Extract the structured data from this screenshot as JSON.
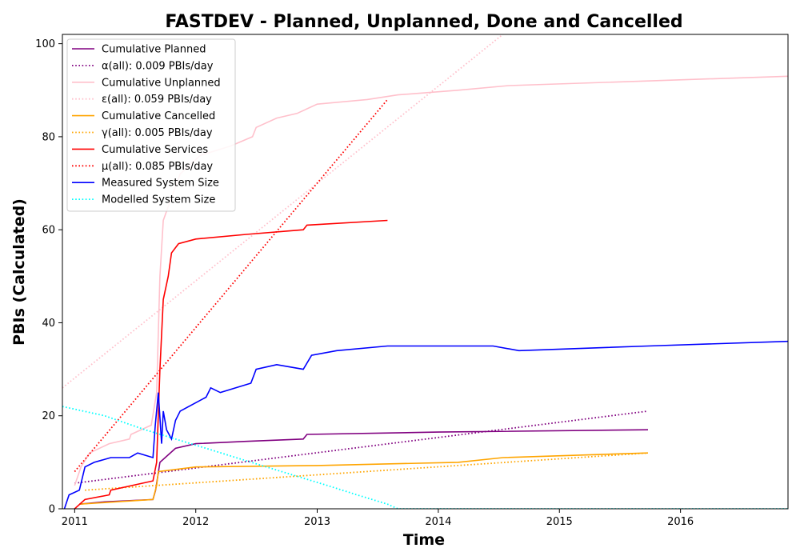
{
  "chart_data": {
    "type": "line",
    "title": "FASTDEV - Planned, Unplanned, Done  and Cancelled",
    "xlabel": "Time",
    "ylabel": "PBIs (Calculated)",
    "xlim": [
      "2010-11-25",
      "2016-11-20"
    ],
    "ylim": [
      0,
      102
    ],
    "x_ticks": [
      "2011",
      "2012",
      "2013",
      "2014",
      "2015",
      "2016"
    ],
    "y_ticks": [
      0,
      20,
      40,
      60,
      80,
      100
    ],
    "grid": false,
    "legend_position": "top-left",
    "series": [
      {
        "name": "Cumulative Planned",
        "color": "#800080",
        "style": "solid",
        "points": [
          [
            "2011-01-15",
            1
          ],
          [
            "2011-04-01",
            1.5
          ],
          [
            "2011-08-25",
            2
          ],
          [
            "2011-09-02",
            4
          ],
          [
            "2011-09-15",
            10
          ],
          [
            "2011-11-01",
            13
          ],
          [
            "2012-01-01",
            14
          ],
          [
            "2012-06-01",
            14.5
          ],
          [
            "2012-11-20",
            15
          ],
          [
            "2012-12-01",
            16
          ],
          [
            "2014-01-01",
            16.5
          ],
          [
            "2015-09-25",
            17
          ]
        ]
      },
      {
        "name": "α(all): 0.009 PBIs/day",
        "color": "#800080",
        "style": "dotted",
        "points": [
          [
            "2011-01-01",
            5.5
          ],
          [
            "2015-09-25",
            21
          ]
        ]
      },
      {
        "name": "Cumulative Unplanned",
        "color": "#ffc0cb",
        "style": "solid",
        "points": [
          [
            "2011-01-01",
            5
          ],
          [
            "2011-01-20",
            9
          ],
          [
            "2011-02-15",
            12
          ],
          [
            "2011-04-15",
            14
          ],
          [
            "2011-06-15",
            15
          ],
          [
            "2011-06-20",
            16
          ],
          [
            "2011-08-20",
            18
          ],
          [
            "2011-09-05",
            25
          ],
          [
            "2011-09-15",
            50
          ],
          [
            "2011-09-25",
            62
          ],
          [
            "2011-10-15",
            66
          ],
          [
            "2011-11-15",
            72
          ],
          [
            "2012-01-15",
            76
          ],
          [
            "2012-04-15",
            78
          ],
          [
            "2012-06-20",
            80
          ],
          [
            "2012-07-01",
            82
          ],
          [
            "2012-09-01",
            84
          ],
          [
            "2012-11-01",
            85
          ],
          [
            "2013-01-01",
            87
          ],
          [
            "2013-06-01",
            88
          ],
          [
            "2013-09-01",
            89
          ],
          [
            "2014-03-01",
            90
          ],
          [
            "2014-08-01",
            91
          ],
          [
            "2016-11-20",
            93
          ]
        ]
      },
      {
        "name": "ε(all): 0.059 PBIs/day",
        "color": "#ffc0cb",
        "style": "dotted",
        "points": [
          [
            "2010-11-25",
            26
          ],
          [
            "2014-08-01",
            103
          ]
        ]
      },
      {
        "name": "Cumulative Cancelled",
        "color": "#ffa500",
        "style": "solid",
        "points": [
          [
            "2011-01-15",
            1
          ],
          [
            "2011-08-25",
            2
          ],
          [
            "2011-09-05",
            5
          ],
          [
            "2011-09-10",
            8
          ],
          [
            "2012-01-01",
            9
          ],
          [
            "2013-01-01",
            9.3
          ],
          [
            "2014-03-01",
            10
          ],
          [
            "2014-07-15",
            11
          ],
          [
            "2015-09-25",
            12
          ]
        ]
      },
      {
        "name": "γ(all): 0.005 PBIs/day",
        "color": "#ffa500",
        "style": "dotted",
        "points": [
          [
            "2011-02-01",
            4
          ],
          [
            "2015-09-25",
            12
          ]
        ]
      },
      {
        "name": "Cumulative Services",
        "color": "#ff0000",
        "style": "solid",
        "points": [
          [
            "2011-01-01",
            0
          ],
          [
            "2011-02-01",
            2
          ],
          [
            "2011-04-15",
            3
          ],
          [
            "2011-04-20",
            4
          ],
          [
            "2011-08-25",
            6
          ],
          [
            "2011-09-05",
            10
          ],
          [
            "2011-09-15",
            30
          ],
          [
            "2011-09-25",
            45
          ],
          [
            "2011-10-10",
            50
          ],
          [
            "2011-10-20",
            55
          ],
          [
            "2011-11-10",
            57
          ],
          [
            "2012-01-01",
            58
          ],
          [
            "2012-06-01",
            59
          ],
          [
            "2012-11-20",
            60
          ],
          [
            "2012-12-01",
            61
          ],
          [
            "2013-08-01",
            62
          ]
        ]
      },
      {
        "name": "μ(all): 0.085 PBIs/day",
        "color": "#ff0000",
        "style": "dotted",
        "points": [
          [
            "2011-01-01",
            8
          ],
          [
            "2013-08-01",
            88
          ]
        ]
      },
      {
        "name": "Measured System Size",
        "color": "#0000ff",
        "style": "solid",
        "points": [
          [
            "2010-12-01",
            0
          ],
          [
            "2010-12-15",
            3
          ],
          [
            "2011-01-15",
            4
          ],
          [
            "2011-02-01",
            9
          ],
          [
            "2011-03-01",
            10
          ],
          [
            "2011-04-20",
            11
          ],
          [
            "2011-06-15",
            11
          ],
          [
            "2011-07-10",
            12
          ],
          [
            "2011-08-25",
            11
          ],
          [
            "2011-09-01",
            18
          ],
          [
            "2011-09-10",
            25
          ],
          [
            "2011-09-20",
            14
          ],
          [
            "2011-09-25",
            21
          ],
          [
            "2011-10-05",
            17
          ],
          [
            "2011-10-20",
            15
          ],
          [
            "2011-11-01",
            19
          ],
          [
            "2011-11-15",
            21
          ],
          [
            "2012-02-01",
            24
          ],
          [
            "2012-02-15",
            26
          ],
          [
            "2012-03-15",
            25
          ],
          [
            "2012-06-15",
            27
          ],
          [
            "2012-07-01",
            30
          ],
          [
            "2012-09-01",
            31
          ],
          [
            "2012-11-20",
            30
          ],
          [
            "2012-12-15",
            33
          ],
          [
            "2013-03-01",
            34
          ],
          [
            "2013-08-01",
            35
          ],
          [
            "2014-03-01",
            35
          ],
          [
            "2014-06-15",
            35
          ],
          [
            "2014-09-01",
            34
          ],
          [
            "2015-09-25",
            35
          ],
          [
            "2016-11-20",
            36
          ]
        ]
      },
      {
        "name": "Modelled System Size",
        "color": "#00ffff",
        "style": "dotted",
        "points": [
          [
            "2010-11-25",
            22
          ],
          [
            "2011-04-01",
            20
          ],
          [
            "2011-08-01",
            17
          ],
          [
            "2011-11-01",
            15
          ],
          [
            "2012-02-01",
            13
          ],
          [
            "2012-05-01",
            11
          ],
          [
            "2012-08-01",
            9
          ],
          [
            "2012-11-01",
            7
          ],
          [
            "2013-02-01",
            5
          ],
          [
            "2013-05-01",
            3
          ],
          [
            "2013-08-01",
            1
          ],
          [
            "2013-09-01",
            0
          ],
          [
            "2016-11-20",
            0
          ]
        ]
      }
    ]
  }
}
